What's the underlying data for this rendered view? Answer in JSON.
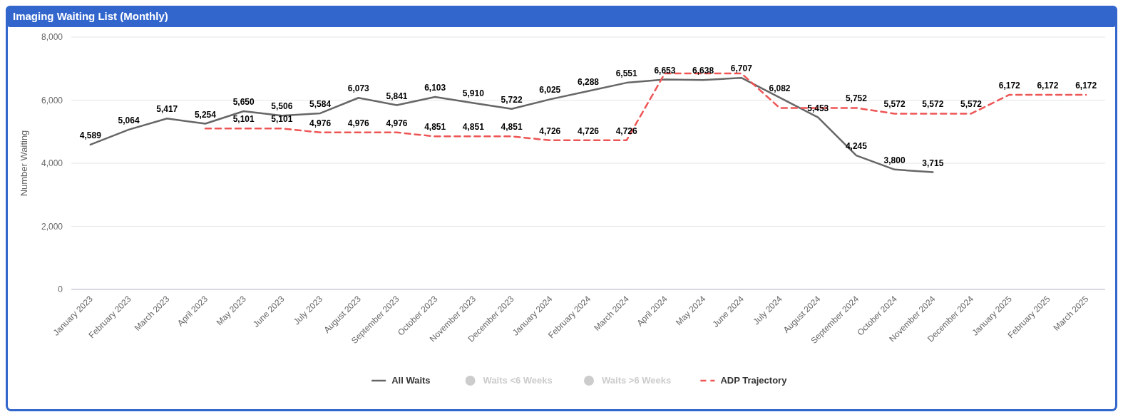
{
  "chart_data": {
    "type": "line",
    "title": "Imaging Waiting List (Monthly)",
    "ylabel": "Number Waiting",
    "categories": [
      "January 2023",
      "February 2023",
      "March 2023",
      "April 2023",
      "May 2023",
      "June 2023",
      "July 2023",
      "August 2023",
      "September 2023",
      "October 2023",
      "November 2023",
      "December 2023",
      "January 2024",
      "February 2024",
      "March 2024",
      "April 2024",
      "May 2024",
      "June 2024",
      "July 2024",
      "August 2024",
      "September 2024",
      "October 2024",
      "November 2024",
      "December 2024",
      "January 2025",
      "February 2025",
      "March 2025"
    ],
    "series": [
      {
        "name": "All Waits",
        "color": "#666666",
        "line_style": "solid",
        "values": [
          4589,
          5064,
          5417,
          5254,
          5650,
          5506,
          5584,
          6073,
          5841,
          6103,
          5910,
          5722,
          6025,
          6288,
          6551,
          6653,
          6638,
          6707,
          6082,
          5453,
          4245,
          3800,
          3715,
          null,
          null,
          null,
          null
        ],
        "value_labels": [
          "4,589",
          "5,064",
          "5,417",
          "5,254",
          "5,650",
          "5,506",
          "5,584",
          "6,073",
          "5,841",
          "6,103",
          "5,910",
          "5,722",
          "6,025",
          "6,288",
          "6,551",
          "6,653",
          "6,638",
          "6,707",
          "6,082",
          "5,453",
          "4,245",
          "3,800",
          "3,715",
          null,
          null,
          null,
          null
        ]
      },
      {
        "name": "Waits <6 Weeks",
        "type": "scatter",
        "color": "#cccccc",
        "values": [
          null,
          null,
          null,
          null,
          null,
          null,
          null,
          null,
          null,
          null,
          null,
          null,
          null,
          null,
          null,
          null,
          null,
          null,
          null,
          null,
          null,
          null,
          null,
          null,
          null,
          null,
          null
        ]
      },
      {
        "name": "Waits >6 Weeks",
        "type": "scatter",
        "color": "#cccccc",
        "values": [
          null,
          null,
          null,
          null,
          null,
          null,
          null,
          null,
          null,
          null,
          null,
          null,
          null,
          null,
          null,
          null,
          null,
          null,
          null,
          null,
          null,
          null,
          null,
          null,
          null,
          null,
          null
        ]
      },
      {
        "name": "ADP Trajectory",
        "color": "#ee5555",
        "line_style": "dashed",
        "values": [
          null,
          null,
          null,
          5101,
          5101,
          5101,
          4976,
          4976,
          4976,
          4851,
          4851,
          4851,
          4726,
          4726,
          4726,
          6850,
          6850,
          6850,
          5752,
          5752,
          5752,
          5572,
          5572,
          5572,
          6172,
          6172,
          6172
        ],
        "value_labels": [
          null,
          null,
          null,
          null,
          "5,101",
          "5,101",
          "4,976",
          "4,976",
          "4,976",
          "4,851",
          "4,851",
          "4,851",
          "4,726",
          "4,726",
          "4,726",
          null,
          null,
          null,
          null,
          null,
          "5,752",
          "5,572",
          "5,572",
          "5,572",
          "6,172",
          "6,172",
          "6,172"
        ]
      }
    ],
    "ylim": [
      0,
      8000
    ],
    "yticks": [
      0,
      {
        "value": 2000,
        "label": "2,000"
      },
      {
        "value": 4000,
        "label": "4,000"
      },
      {
        "value": 6000,
        "label": "6,000"
      },
      {
        "value": 8000,
        "label": "8,000"
      }
    ],
    "grid": "y",
    "legend": "bottom"
  }
}
